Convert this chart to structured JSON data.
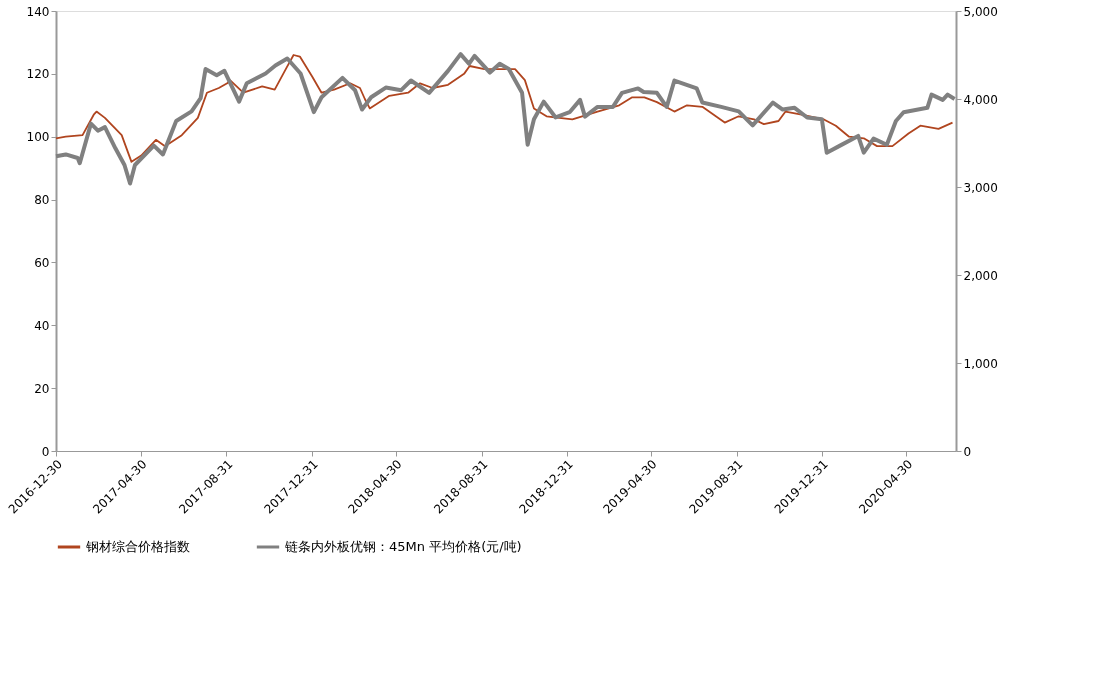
{
  "chart_data": {
    "type": "line",
    "legend": "bottom",
    "grid": false,
    "marker": "none",
    "line_style": "solid",
    "xlim": [
      "2016-12-30",
      "2020-07-10"
    ],
    "xticks": [
      "2016-12-30",
      "2017-04-30",
      "2017-08-31",
      "2017-12-31",
      "2018-04-30",
      "2018-08-31",
      "2018-12-31",
      "2019-04-30",
      "2019-08-31",
      "2019-12-31",
      "2020-04-30"
    ],
    "ylim": [
      0,
      140
    ],
    "yticks": [
      0,
      20,
      40,
      60,
      80,
      100,
      120,
      140
    ],
    "y2lim": [
      0,
      5000
    ],
    "y2ticks": [
      0,
      {
        "value": 1000,
        "label": "1,000"
      },
      {
        "value": 2000,
        "label": "2,000"
      },
      {
        "value": 3000,
        "label": "3,000"
      },
      {
        "value": 4000,
        "label": "4,000"
      },
      {
        "value": 5000,
        "label": "5,000"
      }
    ],
    "series": [
      {
        "name": "钢材综合价格指数",
        "color": "#b0451f",
        "x": [
          "2016-12-30",
          "2017-01-13",
          "2017-02-06",
          "2017-02-22",
          "2017-02-26",
          "2017-03-10",
          "2017-04-03",
          "2017-04-17",
          "2017-05-01",
          "2017-05-22",
          "2017-06-04",
          "2017-06-28",
          "2017-07-21",
          "2017-08-03",
          "2017-08-20",
          "2017-09-01",
          "2017-09-05",
          "2017-09-24",
          "2017-10-21",
          "2017-11-08",
          "2017-11-25",
          "2017-12-05",
          "2017-12-14",
          "2018-01-01",
          "2018-01-14",
          "2018-02-01",
          "2018-02-24",
          "2018-03-10",
          "2018-03-17",
          "2018-03-24",
          "2018-04-21",
          "2018-05-18",
          "2018-06-04",
          "2018-06-22",
          "2018-07-14",
          "2018-08-06",
          "2018-08-14",
          "2018-09-04",
          "2018-10-18",
          "2018-11-01",
          "2018-11-14",
          "2018-12-02",
          "2019-01-08",
          "2019-02-13",
          "2019-03-16",
          "2019-04-03",
          "2019-04-21",
          "2019-05-09",
          "2019-06-03",
          "2019-06-21",
          "2019-07-13",
          "2019-08-14",
          "2019-09-03",
          "2019-09-25",
          "2019-10-09",
          "2019-10-30",
          "2019-11-09",
          "2019-12-02",
          "2020-01-03",
          "2020-01-20",
          "2020-02-08",
          "2020-02-29",
          "2020-03-19",
          "2020-04-10",
          "2020-05-03",
          "2020-05-20",
          "2020-06-15",
          "2020-07-05"
        ],
        "values": [
          99.5,
          100,
          100.5,
          107,
          108,
          106,
          100.5,
          92,
          94,
          99,
          97,
          100.5,
          106,
          114,
          115.5,
          117,
          118,
          114,
          116,
          115,
          122,
          126,
          125.5,
          119,
          114,
          115,
          117,
          115.5,
          112,
          109,
          113,
          114,
          117,
          115.5,
          116.5,
          120,
          122.5,
          121.5,
          121.5,
          118,
          109,
          106.5,
          105.5,
          108,
          110,
          112.5,
          112.5,
          111,
          108,
          110,
          109.5,
          104.5,
          106.5,
          105.5,
          104,
          105,
          108,
          107,
          105.5,
          103.5,
          100,
          99.5,
          97,
          97,
          101,
          103.5,
          102.5,
          104.5
        ]
      },
      {
        "name": "链条内外板优钢：45Mn 平均价格(元/吨)",
        "color": "#808080",
        "axis": "y2",
        "x": [
          "2016-12-30",
          "2017-01-13",
          "2017-01-30",
          "2017-02-02",
          "2017-02-18",
          "2017-02-28",
          "2017-03-10",
          "2017-03-25",
          "2017-04-07",
          "2017-04-15",
          "2017-04-22",
          "2017-05-19",
          "2017-06-01",
          "2017-06-20",
          "2017-07-12",
          "2017-07-25",
          "2017-08-01",
          "2017-08-17",
          "2017-08-28",
          "2017-09-18",
          "2017-09-29",
          "2017-10-26",
          "2017-11-09",
          "2017-11-26",
          "2017-12-15",
          "2018-01-03",
          "2018-01-14",
          "2018-02-13",
          "2018-03-03",
          "2018-03-13",
          "2018-03-26",
          "2018-04-16",
          "2018-05-08",
          "2018-05-22",
          "2018-06-17",
          "2018-07-14",
          "2018-08-01",
          "2018-08-13",
          "2018-08-21",
          "2018-09-12",
          "2018-09-26",
          "2018-10-09",
          "2018-10-28",
          "2018-11-05",
          "2018-11-14",
          "2018-11-28",
          "2018-12-15",
          "2019-01-04",
          "2019-01-19",
          "2019-01-26",
          "2019-02-13",
          "2019-03-07",
          "2019-03-20",
          "2019-04-12",
          "2019-04-20",
          "2019-05-09",
          "2019-05-23",
          "2019-06-03",
          "2019-07-05",
          "2019-07-13",
          "2019-08-09",
          "2019-09-03",
          "2019-09-23",
          "2019-10-22",
          "2019-11-05",
          "2019-11-22",
          "2019-12-10",
          "2019-12-31",
          "2020-01-07",
          "2020-01-26",
          "2020-02-21",
          "2020-02-29",
          "2020-03-14",
          "2020-04-02",
          "2020-04-15",
          "2020-04-26",
          "2020-05-30",
          "2020-06-05",
          "2020-06-21",
          "2020-06-28",
          "2020-07-08"
        ],
        "values": [
          3350,
          3370,
          3330,
          3270,
          3720,
          3640,
          3680,
          3440,
          3250,
          3040,
          3250,
          3470,
          3370,
          3750,
          3860,
          4010,
          4340,
          4270,
          4320,
          3970,
          4180,
          4290,
          4380,
          4460,
          4290,
          3850,
          4020,
          4240,
          4100,
          3880,
          4020,
          4130,
          4100,
          4210,
          4070,
          4320,
          4510,
          4400,
          4490,
          4300,
          4400,
          4340,
          4070,
          3480,
          3770,
          3970,
          3790,
          3850,
          3990,
          3800,
          3910,
          3910,
          4070,
          4120,
          4080,
          4070,
          3910,
          4210,
          4120,
          3960,
          3910,
          3860,
          3700,
          3960,
          3880,
          3900,
          3790,
          3770,
          3390,
          3470,
          3580,
          3390,
          3550,
          3480,
          3750,
          3850,
          3900,
          4050,
          3990,
          4050,
          4000
        ]
      }
    ]
  }
}
